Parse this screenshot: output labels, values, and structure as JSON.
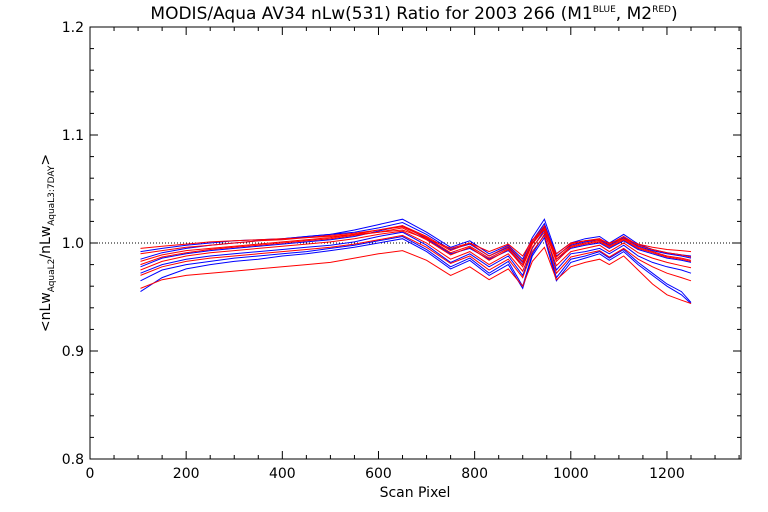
{
  "chart_data": {
    "type": "line",
    "title": {
      "prefix": "MODIS/Aqua AV34 nLw(531) Ratio for 2003 266 (M1",
      "sup1": "BLUE",
      "mid": ", M2",
      "sup2": "RED",
      "suffix": ")"
    },
    "xlabel": "Scan Pixel",
    "ylabel": {
      "pre": "<nLw",
      "sub1": "AquaL2",
      "mid": "/nLw",
      "sub2": "AquaL3:7DAY",
      "post": ">"
    },
    "xlim": [
      0,
      1354
    ],
    "ylim": [
      0.8,
      1.2
    ],
    "x_ticks": [
      0,
      200,
      400,
      600,
      800,
      1000,
      1200
    ],
    "y_ticks": [
      0.8,
      0.9,
      1.0,
      1.1,
      1.2
    ],
    "y_tick_labels": [
      "0.8",
      "0.9",
      "1.0",
      "1.1",
      "1.2"
    ],
    "reference_line": {
      "y": 1.0,
      "style": "dotted"
    },
    "x": [
      105,
      150,
      200,
      250,
      300,
      350,
      400,
      450,
      500,
      550,
      600,
      650,
      700,
      750,
      790,
      830,
      870,
      900,
      920,
      945,
      970,
      1000,
      1030,
      1060,
      1080,
      1110,
      1140,
      1170,
      1200,
      1230,
      1250
    ],
    "series": [
      {
        "color": "#0000ff",
        "values": [
          0.978,
          0.986,
          0.99,
          0.993,
          0.995,
          0.997,
          0.999,
          1.001,
          1.003,
          1.006,
          1.011,
          1.016,
          1.004,
          0.99,
          0.995,
          0.985,
          0.993,
          0.98,
          1.0,
          1.015,
          0.985,
          0.995,
          0.998,
          1.0,
          0.995,
          1.002,
          0.994,
          0.99,
          0.986,
          0.984,
          0.982
        ]
      },
      {
        "color": "#0000ff",
        "values": [
          0.985,
          0.991,
          0.995,
          0.998,
          1.0,
          1.002,
          1.004,
          1.006,
          1.008,
          1.012,
          1.017,
          1.022,
          1.01,
          0.996,
          1.002,
          0.99,
          0.998,
          0.985,
          1.005,
          1.022,
          0.99,
          1.0,
          1.004,
          1.006,
          1.0,
          1.008,
          0.999,
          0.994,
          0.991,
          0.989,
          0.988
        ]
      },
      {
        "color": "#0000ff",
        "values": [
          0.972,
          0.98,
          0.985,
          0.988,
          0.99,
          0.992,
          0.994,
          0.996,
          0.998,
          1.001,
          1.006,
          1.01,
          0.998,
          0.982,
          0.99,
          0.978,
          0.988,
          0.97,
          0.995,
          1.012,
          0.975,
          0.99,
          0.992,
          0.995,
          0.99,
          0.998,
          0.988,
          0.982,
          0.978,
          0.975,
          0.972
        ]
      },
      {
        "color": "#0000ff",
        "values": [
          0.965,
          0.975,
          0.98,
          0.983,
          0.986,
          0.988,
          0.99,
          0.992,
          0.995,
          0.998,
          1.002,
          1.006,
          0.994,
          0.978,
          0.986,
          0.972,
          0.983,
          0.96,
          0.99,
          1.008,
          0.968,
          0.985,
          0.988,
          0.992,
          0.986,
          0.994,
          0.982,
          0.972,
          0.962,
          0.955,
          0.945
        ]
      },
      {
        "color": "#0000ff",
        "values": [
          0.992,
          0.995,
          0.998,
          1.0,
          1.002,
          1.003,
          1.004,
          1.006,
          1.008,
          1.01,
          1.014,
          1.019,
          1.008,
          0.994,
          0.999,
          0.988,
          0.996,
          0.982,
          1.002,
          1.018,
          0.988,
          0.998,
          1.001,
          1.003,
          0.998,
          1.005,
          0.997,
          0.993,
          0.99,
          0.988,
          0.986
        ]
      },
      {
        "color": "#0000ff",
        "values": [
          0.955,
          0.968,
          0.976,
          0.98,
          0.983,
          0.985,
          0.988,
          0.99,
          0.993,
          0.996,
          1.0,
          1.004,
          0.992,
          0.976,
          0.984,
          0.97,
          0.98,
          0.958,
          0.988,
          1.005,
          0.965,
          0.982,
          0.986,
          0.99,
          0.984,
          0.992,
          0.98,
          0.97,
          0.96,
          0.952,
          0.944
        ]
      },
      {
        "color": "#ff0000",
        "values": [
          0.98,
          0.987,
          0.991,
          0.994,
          0.996,
          0.998,
          1.0,
          1.002,
          1.004,
          1.007,
          1.01,
          1.014,
          1.003,
          0.989,
          0.996,
          0.984,
          0.994,
          0.978,
          0.999,
          1.013,
          0.983,
          0.996,
          0.999,
          1.001,
          0.996,
          1.003,
          0.995,
          0.991,
          0.987,
          0.985,
          0.983
        ]
      },
      {
        "color": "#ff0000",
        "values": [
          0.99,
          0.993,
          0.996,
          0.998,
          1.0,
          1.002,
          1.003,
          1.005,
          1.007,
          1.009,
          1.012,
          1.016,
          1.006,
          0.993,
          1.0,
          0.988,
          0.997,
          0.983,
          1.002,
          1.016,
          0.987,
          0.999,
          1.002,
          1.004,
          0.999,
          1.006,
          0.998,
          0.994,
          0.991,
          0.989,
          0.987
        ]
      },
      {
        "color": "#ff0000",
        "values": [
          0.975,
          0.983,
          0.988,
          0.991,
          0.993,
          0.995,
          0.997,
          0.999,
          1.001,
          1.004,
          1.008,
          1.011,
          1.0,
          0.985,
          0.992,
          0.98,
          0.99,
          0.974,
          0.996,
          1.01,
          0.979,
          0.992,
          0.995,
          0.998,
          0.992,
          1.0,
          0.991,
          0.986,
          0.982,
          0.979,
          0.977
        ]
      },
      {
        "color": "#ff0000",
        "values": [
          0.958,
          0.966,
          0.97,
          0.972,
          0.974,
          0.976,
          0.978,
          0.98,
          0.982,
          0.986,
          0.99,
          0.993,
          0.984,
          0.97,
          0.978,
          0.966,
          0.976,
          0.96,
          0.983,
          0.996,
          0.966,
          0.978,
          0.982,
          0.985,
          0.98,
          0.988,
          0.975,
          0.962,
          0.952,
          0.947,
          0.944
        ]
      },
      {
        "color": "#ff0000",
        "values": [
          0.995,
          0.997,
          0.999,
          1.001,
          1.002,
          1.003,
          1.004,
          1.005,
          1.006,
          1.008,
          1.01,
          1.012,
          1.004,
          0.995,
          1.0,
          0.992,
          0.999,
          0.988,
          1.003,
          1.012,
          0.99,
          1.0,
          1.002,
          1.003,
          1.0,
          1.004,
          0.999,
          0.996,
          0.994,
          0.993,
          0.992
        ]
      },
      {
        "color": "#ff0000",
        "values": [
          0.97,
          0.978,
          0.983,
          0.986,
          0.988,
          0.99,
          0.992,
          0.994,
          0.996,
          0.999,
          1.003,
          1.007,
          0.996,
          0.981,
          0.988,
          0.975,
          0.985,
          0.968,
          0.992,
          1.007,
          0.972,
          0.987,
          0.99,
          0.993,
          0.987,
          0.995,
          0.985,
          0.978,
          0.972,
          0.968,
          0.965
        ]
      },
      {
        "color": "#ff0000",
        "values": [
          0.983,
          0.989,
          0.993,
          0.995,
          0.997,
          0.999,
          1.001,
          1.003,
          1.005,
          1.008,
          1.012,
          1.015,
          1.005,
          0.991,
          0.997,
          0.986,
          0.995,
          0.98,
          1.0,
          1.014,
          0.985,
          0.997,
          1.0,
          1.002,
          0.997,
          1.004,
          0.996,
          0.992,
          0.988,
          0.986,
          0.984
        ]
      }
    ]
  }
}
